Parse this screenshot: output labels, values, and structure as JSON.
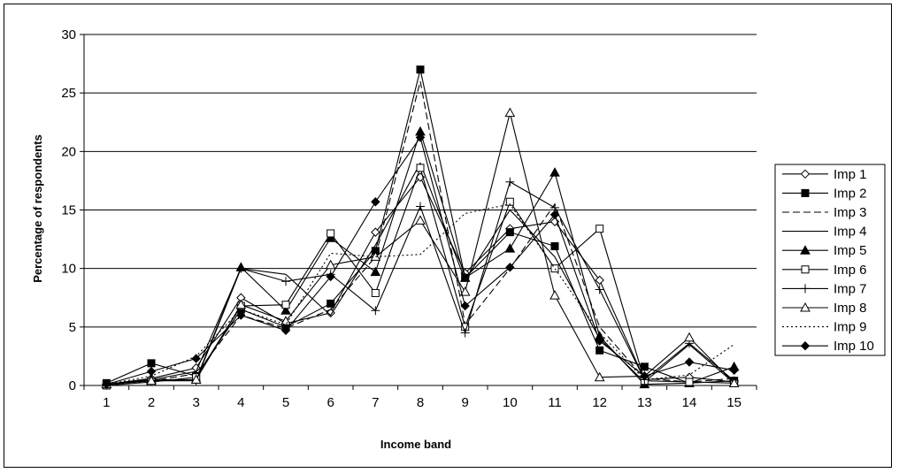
{
  "chart_data": {
    "type": "line",
    "xlabel": "Income band",
    "ylabel": "Percentage of respondents",
    "x": [
      1,
      2,
      3,
      4,
      5,
      6,
      7,
      8,
      9,
      10,
      11,
      12,
      13,
      14,
      15
    ],
    "xticks": [
      "1",
      "2",
      "3",
      "4",
      "5",
      "6",
      "7",
      "8",
      "9",
      "10",
      "11",
      "12",
      "13",
      "14",
      "15"
    ],
    "ylim": [
      0,
      30
    ],
    "yticks": [
      "0",
      "5",
      "10",
      "15",
      "20",
      "25",
      "30"
    ],
    "grid": "horizontal",
    "legend_position": "right",
    "series": [
      {
        "name": "Imp 1",
        "marker": "diamond-open",
        "dash": "solid",
        "values": [
          0.1,
          0.6,
          1.5,
          7.5,
          5.3,
          6.2,
          13.1,
          17.8,
          9.6,
          13.4,
          14.0,
          9.0,
          0.5,
          0.7,
          0.3
        ]
      },
      {
        "name": "Imp 2",
        "marker": "square-filled",
        "dash": "solid",
        "values": [
          0.2,
          1.9,
          0.8,
          6.5,
          5.0,
          7.0,
          11.5,
          27.0,
          9.2,
          13.1,
          11.9,
          3.0,
          1.6,
          0.2,
          0.4
        ]
      },
      {
        "name": "Imp 3",
        "marker": "none",
        "dash": "dashed",
        "values": [
          0.1,
          0.4,
          1.0,
          6.0,
          4.9,
          6.5,
          11.0,
          26.0,
          5.2,
          10.0,
          15.5,
          5.0,
          0.6,
          0.3,
          0.6
        ]
      },
      {
        "name": "Imp 4",
        "marker": "none",
        "dash": "solid",
        "values": [
          0.1,
          0.5,
          1.2,
          10.0,
          9.5,
          6.0,
          12.0,
          19.0,
          9.0,
          15.0,
          11.0,
          4.0,
          0.3,
          3.5,
          0.2
        ]
      },
      {
        "name": "Imp 5",
        "marker": "triangle-filled",
        "dash": "solid",
        "values": [
          0.1,
          0.5,
          0.5,
          10.1,
          6.4,
          12.6,
          9.7,
          21.7,
          9.2,
          11.7,
          18.2,
          4.2,
          0.1,
          0.2,
          1.6
        ]
      },
      {
        "name": "Imp 6",
        "marker": "square-open",
        "dash": "solid",
        "values": [
          0.0,
          0.3,
          0.7,
          6.8,
          6.9,
          13.0,
          7.9,
          18.6,
          5.0,
          15.7,
          10.0,
          13.4,
          0.4,
          0.3,
          0.2
        ]
      },
      {
        "name": "Imp 7",
        "marker": "plus",
        "dash": "solid",
        "values": [
          0.1,
          0.4,
          0.4,
          10.0,
          8.9,
          9.5,
          6.4,
          15.3,
          4.5,
          17.4,
          15.2,
          8.2,
          0.5,
          3.6,
          0.4
        ]
      },
      {
        "name": "Imp 8",
        "marker": "triangle-open",
        "dash": "solid",
        "values": [
          0.1,
          0.4,
          0.5,
          6.9,
          5.5,
          10.3,
          11.0,
          14.1,
          8.0,
          23.3,
          7.7,
          0.7,
          0.8,
          4.1,
          0.2
        ]
      },
      {
        "name": "Imp 9",
        "marker": "none",
        "dash": "dotted",
        "values": [
          0.1,
          0.8,
          2.5,
          6.5,
          5.2,
          11.3,
          11.0,
          11.2,
          14.7,
          15.5,
          10.0,
          4.5,
          0.5,
          0.9,
          3.5
        ]
      },
      {
        "name": "Imp 10",
        "marker": "diamond-filled",
        "dash": "solid",
        "values": [
          0.1,
          1.2,
          2.3,
          6.0,
          4.7,
          9.3,
          15.7,
          21.2,
          6.8,
          10.1,
          14.6,
          3.8,
          0.8,
          2.0,
          1.3
        ]
      }
    ]
  }
}
